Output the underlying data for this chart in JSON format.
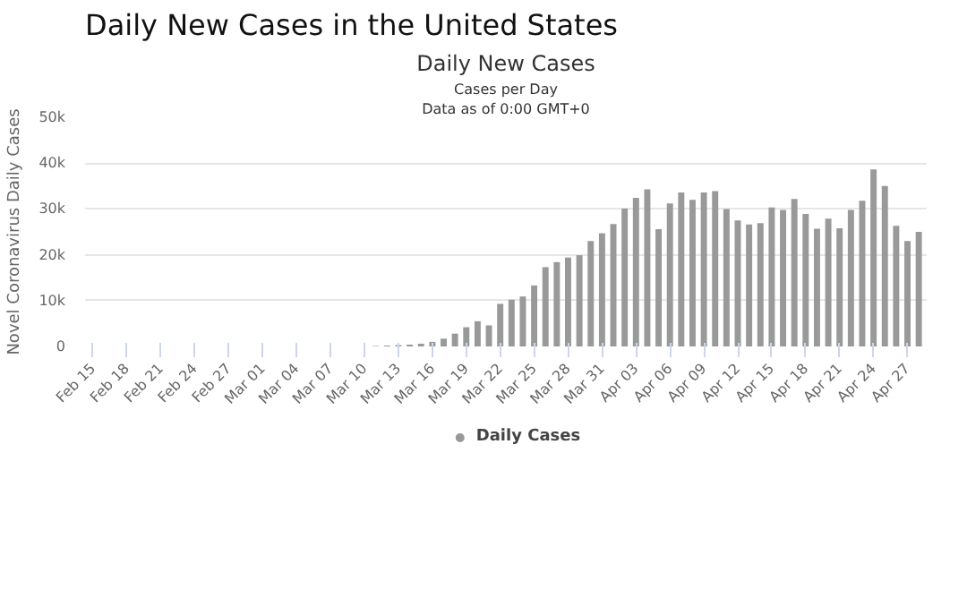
{
  "chart_data": {
    "type": "bar",
    "title": "Daily New Cases in the United States",
    "subtitle": "Daily New Cases",
    "annotations": [
      "Cases per Day",
      "Data as of 0:00 GMT+0"
    ],
    "ylabel": "Novel Coronavirus Daily Cases",
    "categories": [
      "Feb 15",
      null,
      null,
      "Feb 18",
      null,
      null,
      "Feb 21",
      null,
      null,
      "Feb 24",
      null,
      null,
      "Feb 27",
      null,
      null,
      "Mar 01",
      null,
      null,
      "Mar 04",
      null,
      null,
      "Mar 07",
      null,
      null,
      "Mar 10",
      null,
      null,
      "Mar 13",
      null,
      null,
      "Mar 16",
      null,
      null,
      "Mar 19",
      null,
      null,
      "Mar 22",
      null,
      null,
      "Mar 25",
      null,
      null,
      "Mar 28",
      null,
      null,
      "Mar 31",
      null,
      null,
      "Apr 03",
      null,
      null,
      "Apr 06",
      null,
      null,
      "Apr 09",
      null,
      null,
      "Apr 12",
      null,
      null,
      "Apr 15",
      null,
      null,
      "Apr 18",
      null,
      null,
      "Apr 21",
      null,
      null,
      "Apr 24",
      null,
      null,
      "Apr 27",
      null
    ],
    "series": [
      {
        "name": "Daily Cases",
        "color": "#999999",
        "values": [
          0,
          0,
          0,
          0,
          0,
          0,
          0,
          0,
          0,
          0,
          0,
          0,
          0,
          0,
          0,
          0,
          0,
          0,
          0,
          0,
          0,
          0,
          0,
          0,
          0,
          100,
          200,
          300,
          400,
          600,
          1000,
          1700,
          2800,
          4200,
          5500,
          4600,
          9300,
          10200,
          10900,
          13300,
          17300,
          18400,
          19400,
          19900,
          23000,
          24700,
          26700,
          30100,
          32400,
          34300,
          25600,
          31200,
          33600,
          32000,
          33600,
          33900,
          30000,
          27500,
          26600,
          26900,
          30300,
          29800,
          32200,
          28900,
          25700,
          27900,
          25800,
          29800,
          31800,
          38600,
          35000,
          26300,
          23000,
          25000
        ]
      }
    ],
    "ylim": [
      0,
      50000
    ],
    "yticks": [
      0,
      {
        "value": 10000,
        "label": "10k"
      },
      {
        "value": 20000,
        "label": "20k"
      },
      {
        "value": 30000,
        "label": "30k"
      },
      {
        "value": 40000,
        "label": "40k"
      },
      {
        "value": 50000,
        "label": "50k"
      }
    ],
    "grid": "y",
    "legend": "bottom"
  }
}
